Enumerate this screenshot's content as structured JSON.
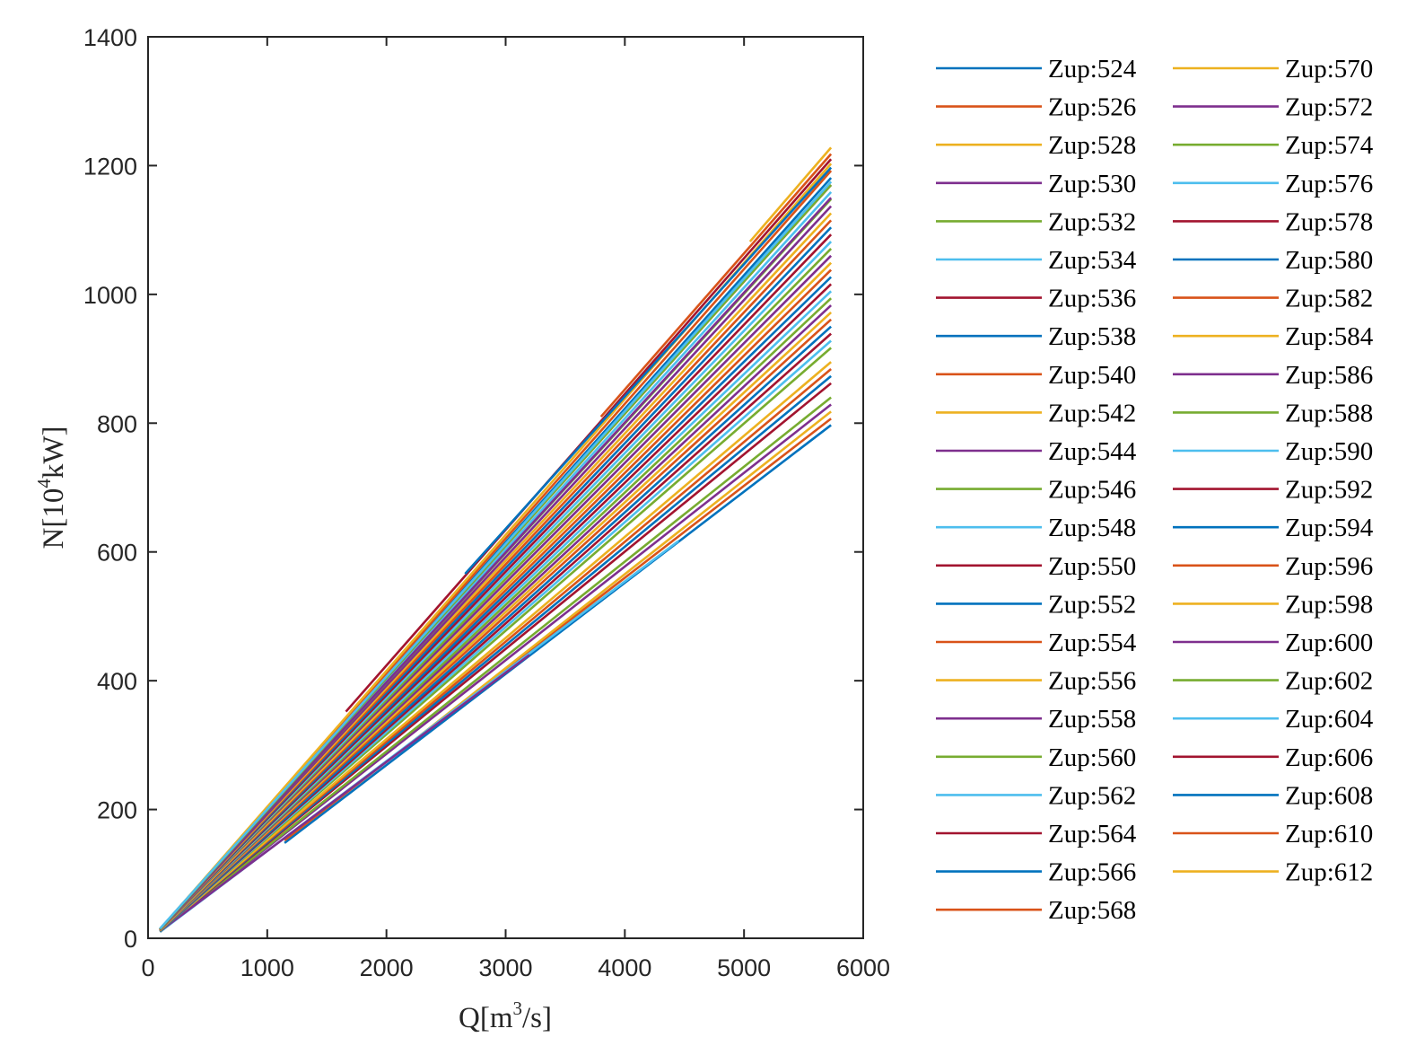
{
  "chart_data": {
    "type": "line",
    "title": "",
    "xlabel": {
      "base": "Q[m",
      "sup": "3",
      "tail": "/s]"
    },
    "ylabel": {
      "base": "N[10",
      "sup": "4",
      "tail": "kW]"
    },
    "xlim": [
      0,
      6000
    ],
    "ylim": [
      0,
      1400
    ],
    "xticks": [
      0,
      1000,
      2000,
      3000,
      4000,
      5000,
      6000
    ],
    "yticks": [
      0,
      200,
      400,
      600,
      800,
      1000,
      1200,
      1400
    ],
    "grid": false,
    "legend_position": "right, outside plot, two columns",
    "palette": [
      "#0072BD",
      "#D95319",
      "#EDB120",
      "#7E2F8E",
      "#77AC30",
      "#4DBEEE",
      "#A2142F"
    ],
    "series": [
      {
        "name": "Zup:524",
        "x_start": 1145,
        "y_start": 148,
        "x_end": 5730,
        "y_end": 797
      },
      {
        "name": "Zup:526",
        "x_start": 1145,
        "y_start": 152,
        "x_end": 5730,
        "y_end": 807
      },
      {
        "name": "Zup:528",
        "x_start": 2140,
        "y_start": 294,
        "x_end": 5730,
        "y_end": 818
      },
      {
        "name": "Zup:530",
        "x_start": 100,
        "y_start": 10,
        "x_end": 5730,
        "y_end": 829
      },
      {
        "name": "Zup:532",
        "x_start": 100,
        "y_start": 10,
        "x_end": 5730,
        "y_end": 840
      },
      {
        "name": "Zup:534",
        "x_start": 100,
        "y_start": 10,
        "x_end": 4450,
        "y_end": 617
      },
      {
        "name": "Zup:536",
        "x_start": 100,
        "y_start": 11,
        "x_end": 5730,
        "y_end": 862
      },
      {
        "name": "Zup:538",
        "x_start": 100,
        "y_start": 11,
        "x_end": 5730,
        "y_end": 873
      },
      {
        "name": "Zup:540",
        "x_start": 100,
        "y_start": 11,
        "x_end": 5730,
        "y_end": 884
      },
      {
        "name": "Zup:542",
        "x_start": 100,
        "y_start": 11,
        "x_end": 5730,
        "y_end": 895
      },
      {
        "name": "Zup:544",
        "x_start": 100,
        "y_start": 11,
        "x_end": 3200,
        "y_end": 440
      },
      {
        "name": "Zup:546",
        "x_start": 100,
        "y_start": 11,
        "x_end": 5730,
        "y_end": 917
      },
      {
        "name": "Zup:548",
        "x_start": 100,
        "y_start": 11,
        "x_end": 5730,
        "y_end": 928
      },
      {
        "name": "Zup:550",
        "x_start": 100,
        "y_start": 11,
        "x_end": 5730,
        "y_end": 939
      },
      {
        "name": "Zup:552",
        "x_start": 100,
        "y_start": 11,
        "x_end": 5730,
        "y_end": 950
      },
      {
        "name": "Zup:554",
        "x_start": 100,
        "y_start": 12,
        "x_end": 5730,
        "y_end": 961
      },
      {
        "name": "Zup:556",
        "x_start": 100,
        "y_start": 12,
        "x_end": 5730,
        "y_end": 972
      },
      {
        "name": "Zup:558",
        "x_start": 100,
        "y_start": 12,
        "x_end": 5730,
        "y_end": 983
      },
      {
        "name": "Zup:560",
        "x_start": 100,
        "y_start": 12,
        "x_end": 5730,
        "y_end": 994
      },
      {
        "name": "Zup:562",
        "x_start": 100,
        "y_start": 12,
        "x_end": 5730,
        "y_end": 1005
      },
      {
        "name": "Zup:564",
        "x_start": 100,
        "y_start": 12,
        "x_end": 5730,
        "y_end": 1016
      },
      {
        "name": "Zup:566",
        "x_start": 100,
        "y_start": 12,
        "x_end": 5730,
        "y_end": 1027
      },
      {
        "name": "Zup:568",
        "x_start": 100,
        "y_start": 12,
        "x_end": 5730,
        "y_end": 1038
      },
      {
        "name": "Zup:570",
        "x_start": 100,
        "y_start": 12,
        "x_end": 5730,
        "y_end": 1049
      },
      {
        "name": "Zup:572",
        "x_start": 100,
        "y_start": 13,
        "x_end": 5730,
        "y_end": 1060
      },
      {
        "name": "Zup:574",
        "x_start": 100,
        "y_start": 13,
        "x_end": 5730,
        "y_end": 1071
      },
      {
        "name": "Zup:576",
        "x_start": 100,
        "y_start": 13,
        "x_end": 5730,
        "y_end": 1082
      },
      {
        "name": "Zup:578",
        "x_start": 100,
        "y_start": 13,
        "x_end": 5730,
        "y_end": 1093
      },
      {
        "name": "Zup:580",
        "x_start": 100,
        "y_start": 13,
        "x_end": 5730,
        "y_end": 1104
      },
      {
        "name": "Zup:582",
        "x_start": 100,
        "y_start": 13,
        "x_end": 5730,
        "y_end": 1115
      },
      {
        "name": "Zup:584",
        "x_start": 100,
        "y_start": 13,
        "x_end": 5730,
        "y_end": 1126
      },
      {
        "name": "Zup:586",
        "x_start": 100,
        "y_start": 13,
        "x_end": 5730,
        "y_end": 1137
      },
      {
        "name": "Zup:588",
        "x_start": 100,
        "y_start": 14,
        "x_end": 5730,
        "y_end": 1148
      },
      {
        "name": "Zup:590",
        "x_start": 100,
        "y_start": 14,
        "x_end": 5730,
        "y_end": 1159
      },
      {
        "name": "Zup:592",
        "x_start": 100,
        "y_start": 14,
        "x_end": 5730,
        "y_end": 1170
      },
      {
        "name": "Zup:594",
        "x_start": 100,
        "y_start": 14,
        "x_end": 5730,
        "y_end": 1181
      },
      {
        "name": "Zup:596",
        "x_start": 100,
        "y_start": 14,
        "x_end": 5730,
        "y_end": 1192
      },
      {
        "name": "Zup:598",
        "x_start": 100,
        "y_start": 14,
        "x_end": 5730,
        "y_end": 1203
      },
      {
        "name": "Zup:600",
        "x_start": 100,
        "y_start": 14,
        "x_end": 5730,
        "y_end": 1150
      },
      {
        "name": "Zup:602",
        "x_start": 100,
        "y_start": 14,
        "x_end": 5730,
        "y_end": 1170
      },
      {
        "name": "Zup:604",
        "x_start": 100,
        "y_start": 15,
        "x_end": 5730,
        "y_end": 1175
      },
      {
        "name": "Zup:606",
        "x_start": 1660,
        "y_start": 352,
        "x_end": 5730,
        "y_end": 1210
      },
      {
        "name": "Zup:608",
        "x_start": 2660,
        "y_start": 566,
        "x_end": 5730,
        "y_end": 1197
      },
      {
        "name": "Zup:610",
        "x_start": 3800,
        "y_start": 810,
        "x_end": 5730,
        "y_end": 1218
      },
      {
        "name": "Zup:612",
        "x_start": 5050,
        "y_start": 1082,
        "x_end": 5730,
        "y_end": 1228
      }
    ]
  }
}
